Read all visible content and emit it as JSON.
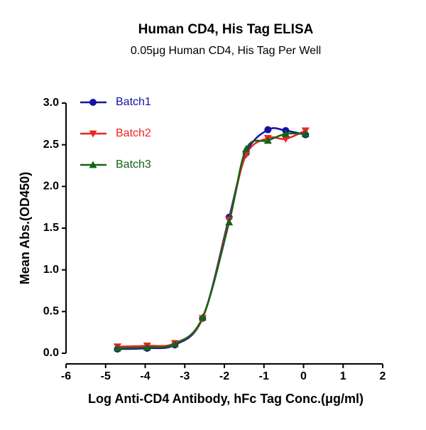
{
  "chart_data": {
    "type": "scatter",
    "title": "Human CD4, His Tag ELISA",
    "subtitle": "0.05μg Human CD4, His Tag Per Well",
    "x_label": "Log Anti-CD4 Antibody, hFc Tag Conc.(μg/ml)",
    "y_label": "Mean Abs.(OD450)",
    "x": [
      -4.7,
      -3.95,
      -3.25,
      -2.55,
      -1.88,
      -1.45,
      -0.9,
      -0.45,
      0.05
    ],
    "series": [
      {
        "name": "Batch1",
        "color": "#1414a0",
        "marker": "circle",
        "values": [
          0.05,
          0.06,
          0.1,
          0.42,
          1.63,
          2.4,
          2.68,
          2.67,
          2.62
        ]
      },
      {
        "name": "Batch2",
        "color": "#e82424",
        "marker": "triangle-down",
        "values": [
          0.08,
          0.09,
          0.12,
          0.42,
          1.6,
          2.38,
          2.58,
          2.57,
          2.67
        ]
      },
      {
        "name": "Batch3",
        "color": "#146414",
        "marker": "triangle-up",
        "values": [
          0.06,
          0.07,
          0.11,
          0.43,
          1.57,
          2.45,
          2.55,
          2.63,
          2.63
        ]
      }
    ],
    "xlim": [
      -6,
      2
    ],
    "xticks": [
      -6,
      -5,
      -4,
      -3,
      -2,
      -1,
      0,
      1,
      2
    ],
    "ylim": [
      0,
      3
    ],
    "yticks": [
      {
        "value": 0,
        "label": "0.0"
      },
      0.5,
      {
        "value": 1,
        "label": "1.0"
      },
      1.5,
      {
        "value": 2,
        "label": "2.0"
      },
      2.5,
      {
        "value": 3,
        "label": "3.0"
      }
    ],
    "legend": "top-left"
  }
}
